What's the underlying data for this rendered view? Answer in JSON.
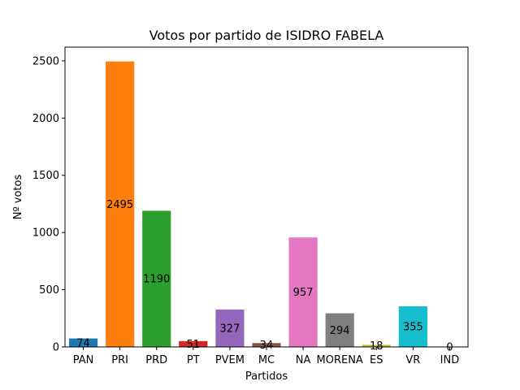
{
  "chart_data": {
    "type": "bar",
    "title": "Votos por partido de ISIDRO FABELA",
    "xlabel": "Partidos",
    "ylabel": "Nº votos",
    "categories": [
      "PAN",
      "PRI",
      "PRD",
      "PT",
      "PVEM",
      "MC",
      "NA",
      "MORENA",
      "ES",
      "VR",
      "IND"
    ],
    "values": [
      74,
      2495,
      1190,
      51,
      327,
      34,
      957,
      294,
      18,
      355,
      0
    ],
    "value_labels": [
      "74",
      "2495",
      "1190",
      "51",
      "327",
      "34",
      "957",
      "294",
      "18",
      "355",
      "0"
    ],
    "colors": [
      "#1f77b4",
      "#ff7f0e",
      "#2ca02c",
      "#d62728",
      "#9467bd",
      "#8c564b",
      "#e377c2",
      "#7f7f7f",
      "#bcbd22",
      "#17becf",
      "#1f77b4"
    ],
    "yticks": [
      0,
      500,
      1000,
      1500,
      2000,
      2500
    ],
    "ytick_labels": [
      "0",
      "500",
      "1000",
      "1500",
      "2000",
      "2500"
    ],
    "ylim": [
      0,
      2620
    ],
    "grid": false,
    "legend": false
  }
}
